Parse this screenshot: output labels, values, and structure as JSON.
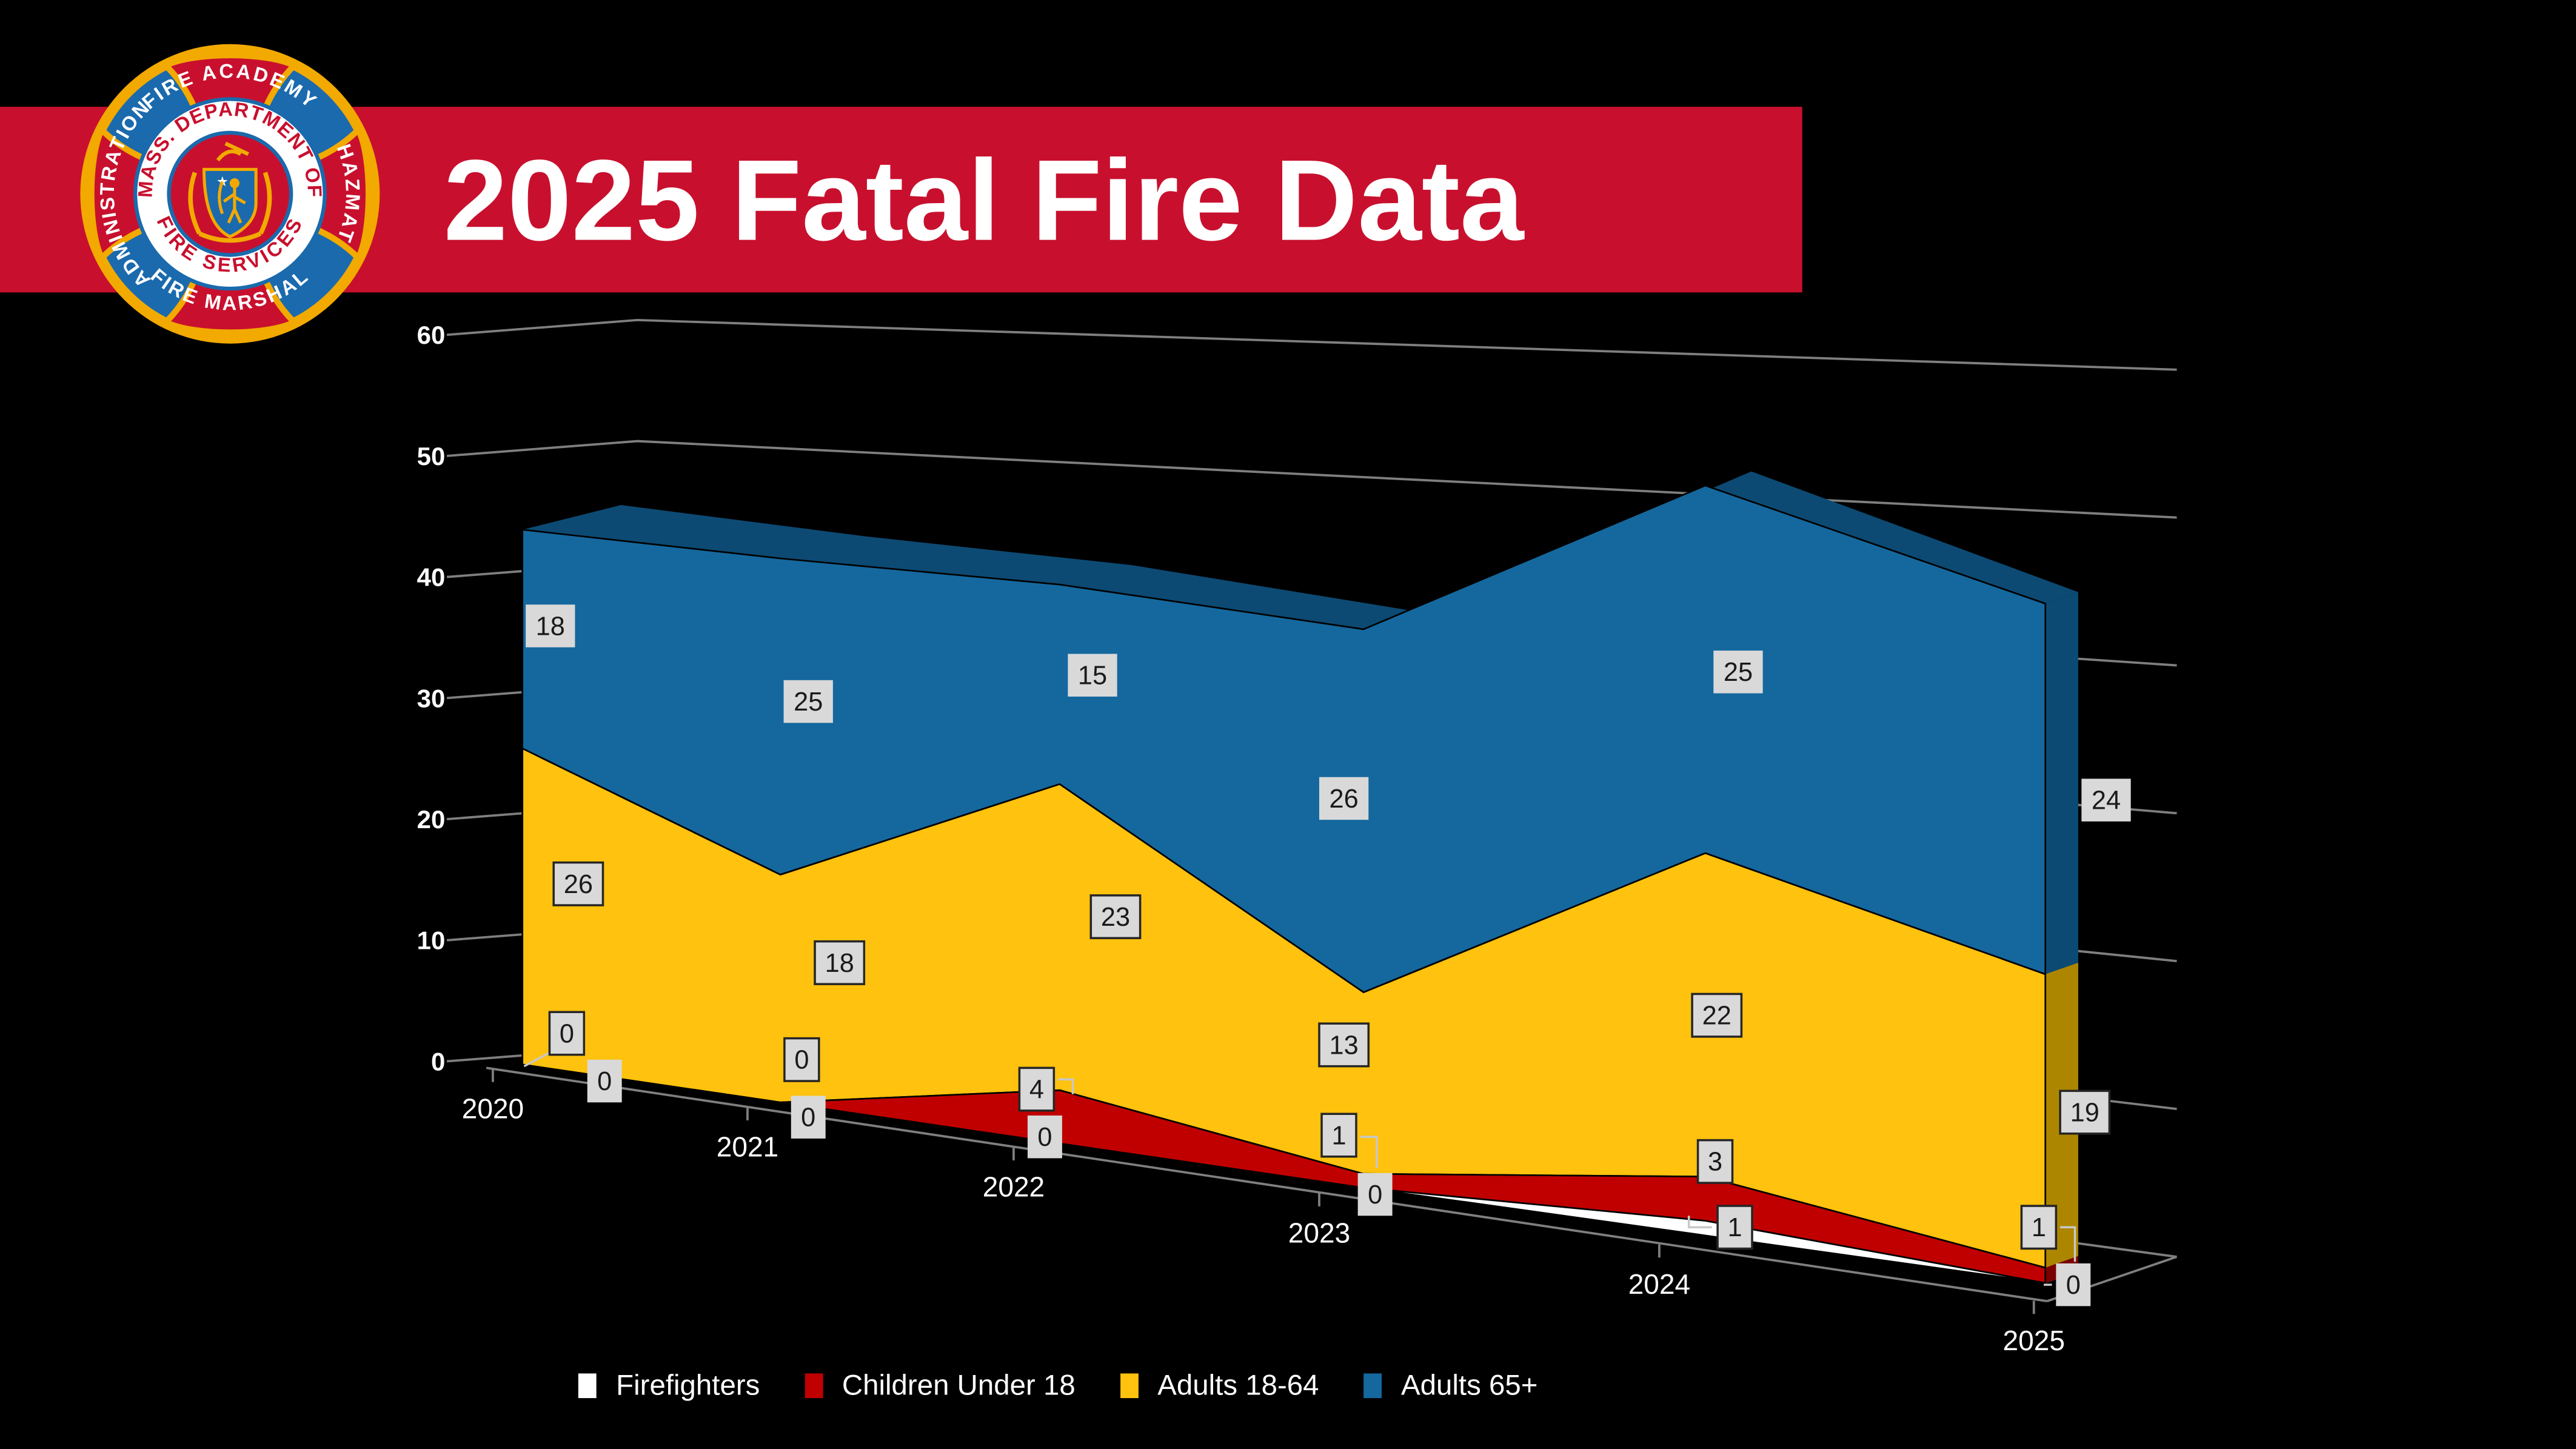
{
  "header": {
    "title": "2025 Fatal Fire Data"
  },
  "logo": {
    "arm_top": "FIRE ACADEMY",
    "arm_right": "HAZMAT",
    "arm_bottom": "FIRE MARSHAL",
    "arm_left": "ADMINISTRATION",
    "ring_top": "MASS. DEPARTMENT OF",
    "ring_bottom": "FIRE SERVICES"
  },
  "chart_data": {
    "type": "area",
    "variant": "3d-stacked",
    "title": "2025 Fatal Fire Data",
    "categories": [
      "2020",
      "2021",
      "2022",
      "2023",
      "2024",
      "2025"
    ],
    "series": [
      {
        "name": "Firefighters",
        "color": "#FFFFFF",
        "side_color": "#E8E8E8",
        "values": [
          0,
          0,
          0,
          0,
          1,
          0
        ],
        "label_borders": [
          false,
          false,
          false,
          false,
          true,
          false
        ]
      },
      {
        "name": "Children Under 18",
        "color": "#C00000",
        "side_color": "#7A0000",
        "values": [
          0,
          0,
          4,
          1,
          3,
          1
        ],
        "label_borders": [
          true,
          true,
          true,
          true,
          true,
          true
        ]
      },
      {
        "name": "Adults 18-64",
        "color": "#FFC20E",
        "side_color": "#AD8600",
        "values": [
          26,
          18,
          23,
          13,
          22,
          19
        ],
        "label_borders": [
          true,
          true,
          true,
          true,
          true,
          true
        ]
      },
      {
        "name": "Adults 65+",
        "color": "#15689E",
        "side_color": "#0C4A73",
        "values": [
          18,
          25,
          15,
          26,
          25,
          24
        ],
        "label_borders": [
          false,
          false,
          false,
          false,
          false,
          false
        ]
      }
    ],
    "y_ticks": [
      0,
      10,
      20,
      30,
      40,
      50,
      60
    ],
    "ylim": [
      0,
      60
    ],
    "xlabel": "",
    "ylabel": "",
    "grid": true,
    "legend_position": "bottom"
  },
  "colors": {
    "background": "#000000",
    "banner": "#C8102E",
    "title_text": "#FFFFFF",
    "gridline": "#7F7F7F",
    "axis_text": "#FFFFFF",
    "data_label_bg": "#D9D9D9",
    "data_label_border": "#262626",
    "data_label_text": "#1A1A1A",
    "logo_gold": "#F2A900",
    "logo_blue": "#1A6AAD",
    "logo_red": "#C8102E"
  }
}
